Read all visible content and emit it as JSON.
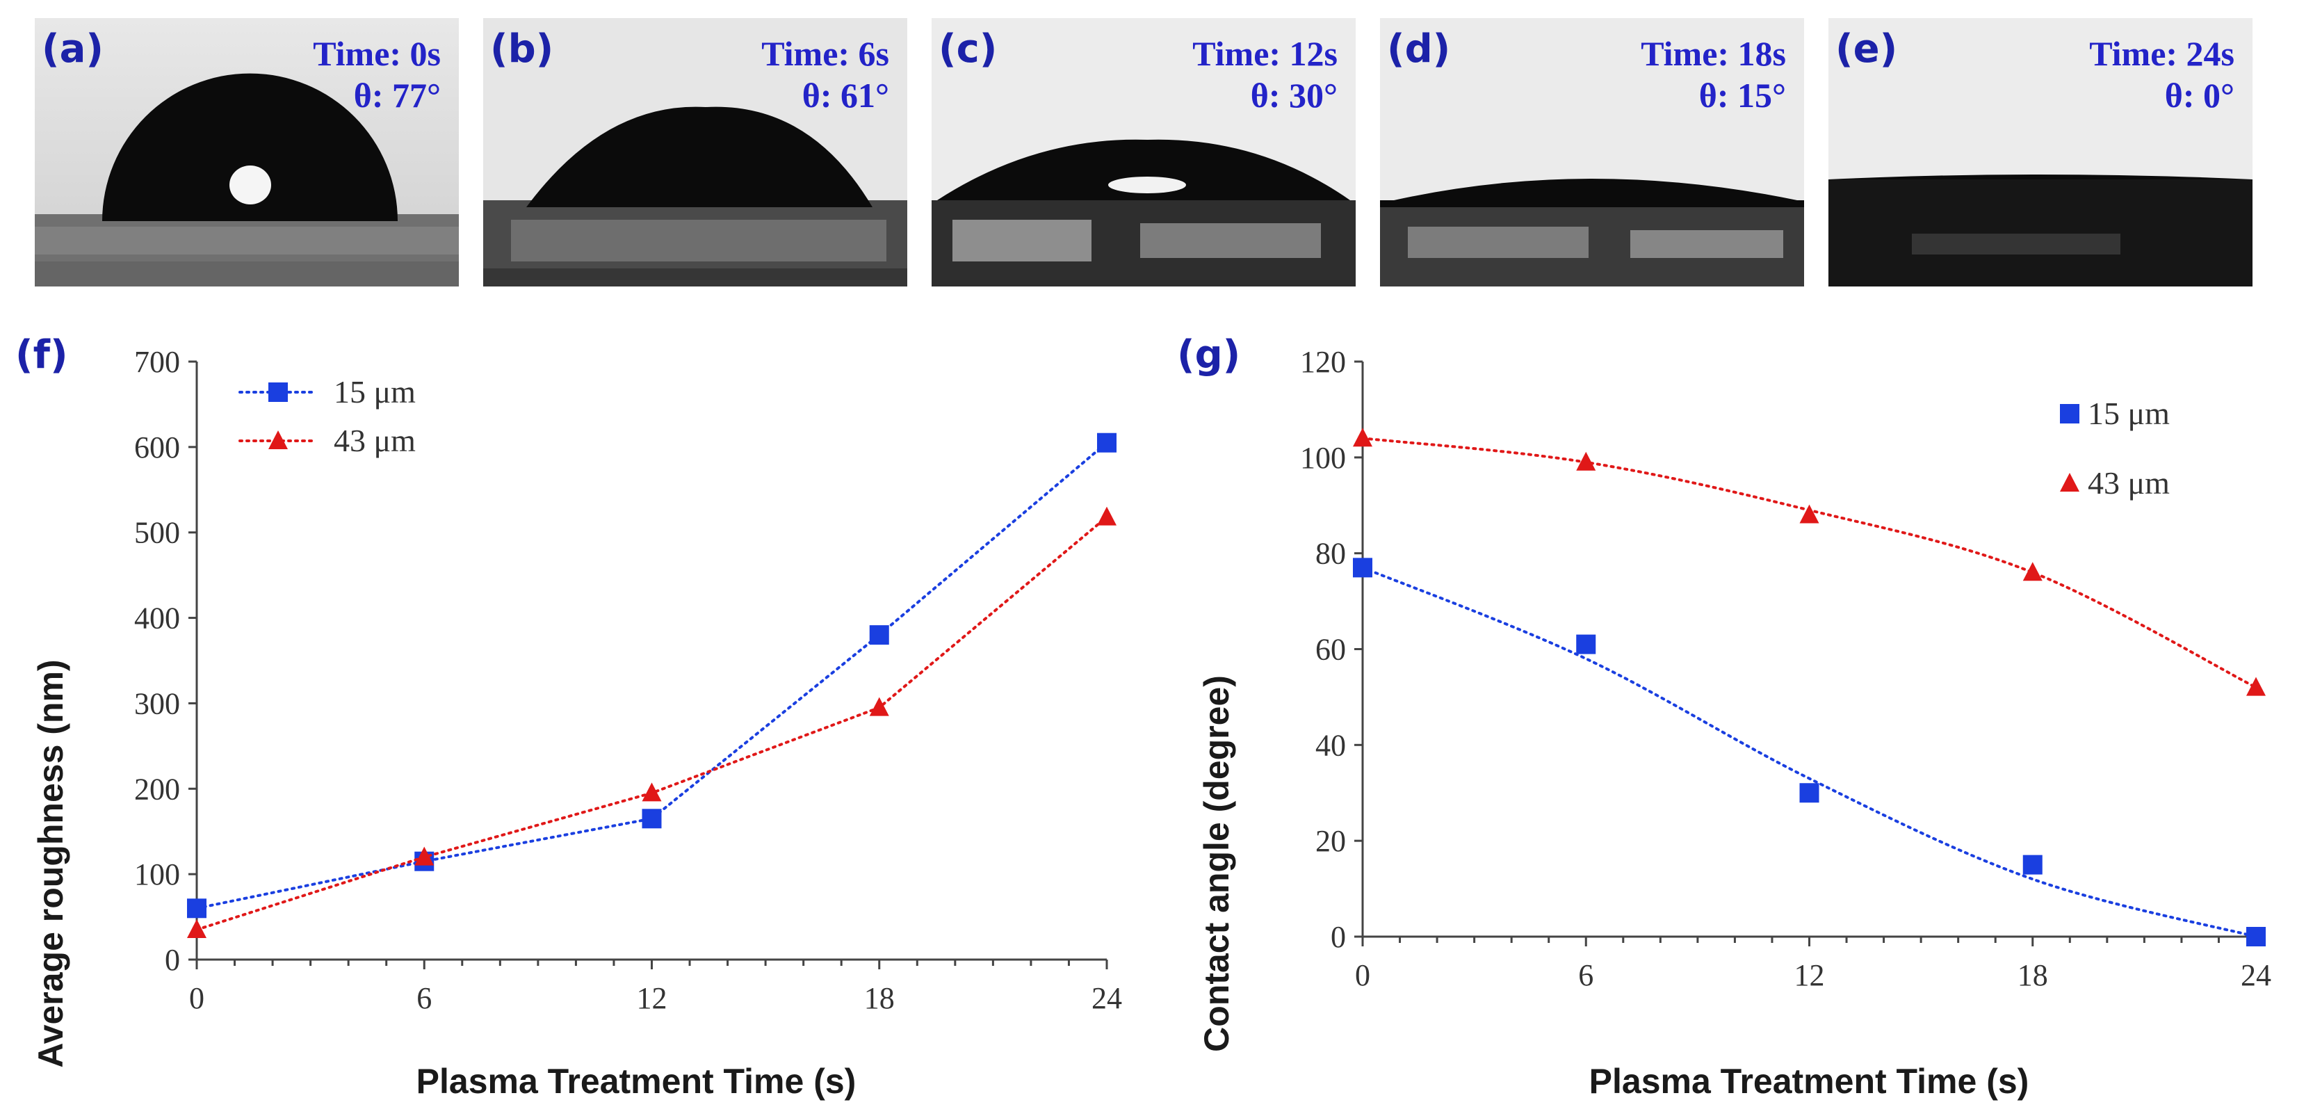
{
  "panels": [
    {
      "label": "(a)",
      "time": "Time: 0s",
      "angle": "θ: 77°"
    },
    {
      "label": "(b)",
      "time": "Time: 6s",
      "angle": "θ: 61°"
    },
    {
      "label": "(c)",
      "time": "Time: 12s",
      "angle": "θ: 30°"
    },
    {
      "label": "(d)",
      "time": "Time: 18s",
      "angle": "θ: 15°"
    },
    {
      "label": "(e)",
      "time": "Time: 24s",
      "angle": "θ: 0°"
    }
  ],
  "colors": {
    "series_15": "#1a3fe0",
    "series_43": "#e01818",
    "panel_label": "#1c22a8"
  },
  "chart_data": [
    {
      "panel_label": "(f)",
      "type": "line",
      "title": "",
      "xlabel": "Plasma Treatment Time (s)",
      "ylabel": "Average roughness (nm)",
      "x": [
        0,
        6,
        12,
        18,
        24
      ],
      "xlim": [
        0,
        24
      ],
      "ylim": [
        0,
        700
      ],
      "xticks": [
        0,
        6,
        12,
        18,
        24
      ],
      "yticks": [
        0,
        100,
        200,
        300,
        400,
        500,
        600,
        700
      ],
      "legend_position": "top-left",
      "series": [
        {
          "name": "15 μm",
          "marker": "square",
          "color": "#1a3fe0",
          "values": [
            60,
            115,
            165,
            380,
            605
          ]
        },
        {
          "name": "43 μm",
          "marker": "triangle",
          "color": "#e01818",
          "values": [
            35,
            120,
            195,
            295,
            518
          ]
        }
      ]
    },
    {
      "panel_label": "(g)",
      "type": "scatter",
      "title": "",
      "xlabel": "Plasma Treatment Time (s)",
      "ylabel": "Contact angle (degree)",
      "x": [
        0,
        6,
        12,
        18,
        24
      ],
      "xlim": [
        0,
        24
      ],
      "ylim": [
        0,
        120
      ],
      "xticks": [
        0,
        6,
        12,
        18,
        24
      ],
      "yticks": [
        0,
        20,
        40,
        60,
        80,
        100,
        120
      ],
      "legend_position": "top-right",
      "series": [
        {
          "name": "15 μm",
          "marker": "square",
          "color": "#1a3fe0",
          "values": [
            77,
            61,
            30,
            15,
            0
          ],
          "fit": [
            77,
            58,
            33,
            12,
            0
          ]
        },
        {
          "name": "43 μm",
          "marker": "triangle",
          "color": "#e01818",
          "values": [
            104,
            99,
            88,
            76,
            52
          ],
          "fit": [
            104,
            99,
            89,
            76,
            52
          ]
        }
      ]
    }
  ]
}
